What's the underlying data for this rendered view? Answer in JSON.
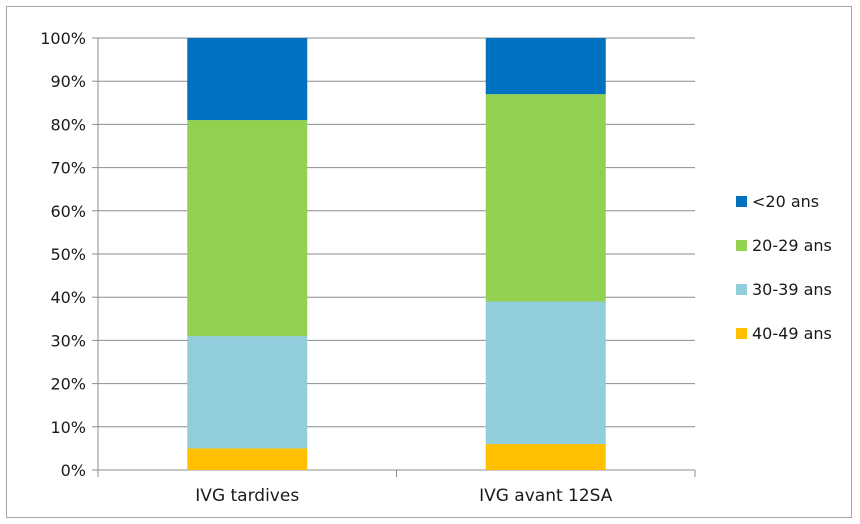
{
  "chart_data": {
    "type": "bar",
    "stacked": true,
    "percent": true,
    "title": "",
    "xlabel": "",
    "ylabel": "",
    "ylim": [
      0,
      100
    ],
    "yticks": [
      "0%",
      "10%",
      "20%",
      "30%",
      "40%",
      "50%",
      "60%",
      "70%",
      "80%",
      "90%",
      "100%"
    ],
    "grid": true,
    "legend_position": "right",
    "categories": [
      "IVG tardives",
      "IVG avant 12SA"
    ],
    "series": [
      {
        "name": "40-49 ans",
        "color": "#ffc000",
        "values": [
          5,
          6
        ]
      },
      {
        "name": "30-39 ans",
        "color": "#92cddc",
        "values": [
          26,
          33
        ]
      },
      {
        "name": "20-29 ans",
        "color": "#92d050",
        "values": [
          50,
          48
        ]
      },
      {
        "name": "<20 ans",
        "color": "#0070c0",
        "values": [
          19,
          13
        ]
      }
    ],
    "legend_order": [
      "<20 ans",
      "20-29 ans",
      "30-39 ans",
      "40-49 ans"
    ]
  }
}
